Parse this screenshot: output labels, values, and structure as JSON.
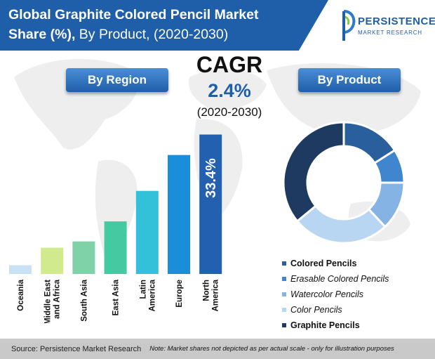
{
  "title": {
    "line1": "Global Graphite Colored Pencil Market",
    "line2_bold": "Share (%),",
    "line2_rest": " By Product, (2020-2030)"
  },
  "logo": {
    "word1": "PERSISTENCE",
    "word2": "MARKET RESEARCH"
  },
  "region_pill": "By Region",
  "product_pill": "By Product",
  "cagr": {
    "label": "CAGR",
    "value": "2.4%",
    "period": "(2020-2030)"
  },
  "chart_data": [
    {
      "type": "bar",
      "categories": [
        "Oceania",
        "Middle East and Africa",
        "South Asia",
        "East Asia",
        "Latin America",
        "Europe",
        "North America"
      ],
      "category_lines": [
        [
          "Oceania"
        ],
        [
          "Middle East",
          "and Africa"
        ],
        [
          "South Asia"
        ],
        [
          "East Asia"
        ],
        [
          "Latin",
          "America"
        ],
        [
          "Europe"
        ],
        [
          "North",
          "America"
        ]
      ],
      "values": [
        2.1,
        6.3,
        7.8,
        12.6,
        19.9,
        28.5,
        33.4
      ],
      "colors": [
        "#c8e1f5",
        "#d2ea8e",
        "#7fd2a8",
        "#45c9a0",
        "#33c1d9",
        "#1a8ed8",
        "#2361b0"
      ],
      "ylim": [
        0,
        35
      ],
      "value_label": "33.4%",
      "value_label_category": "North America"
    },
    {
      "type": "pie",
      "donut": true,
      "categories": [
        "Colored Pencils",
        "Erasable Colored Pencils",
        "Watercolor Pencils",
        "Color Pencils",
        "Graphite Pencils"
      ],
      "values": [
        16,
        9,
        13,
        26,
        36
      ],
      "colors": [
        "#2a5f9e",
        "#3f86cf",
        "#85b3e3",
        "#b8d6f2",
        "#1f3a60"
      ],
      "legend_styles": [
        "bold",
        "italic",
        "italic",
        "italic",
        "bold"
      ],
      "legend_position": "bottom-right"
    }
  ],
  "footer": {
    "source": "Source: Persistence Market Research",
    "note": "Note: Market shares not depicted as per actual scale - only for illustration purposes"
  }
}
